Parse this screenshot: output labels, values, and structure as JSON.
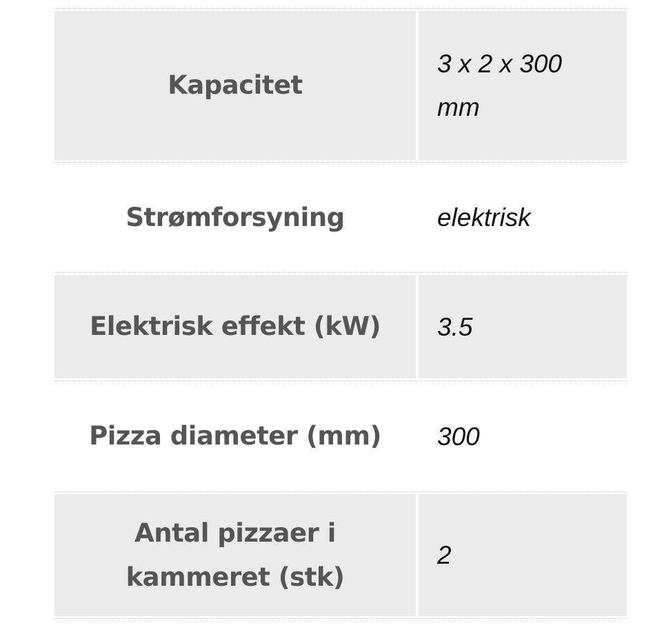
{
  "specs": [
    {
      "label": "Kapacitet",
      "value": "3 x 2 x 300 mm"
    },
    {
      "label": "Strømforsyning",
      "value": "elektrisk"
    },
    {
      "label": "Elektrisk effekt (kW)",
      "value": "3.5"
    },
    {
      "label": "Pizza diameter (mm)",
      "value": "300"
    },
    {
      "label": "Antal pizzaer i kammeret (stk)",
      "value": "2"
    }
  ],
  "colors": {
    "row_alt": "#ebebeb",
    "label_text": "#555555",
    "value_text": "#111111"
  }
}
